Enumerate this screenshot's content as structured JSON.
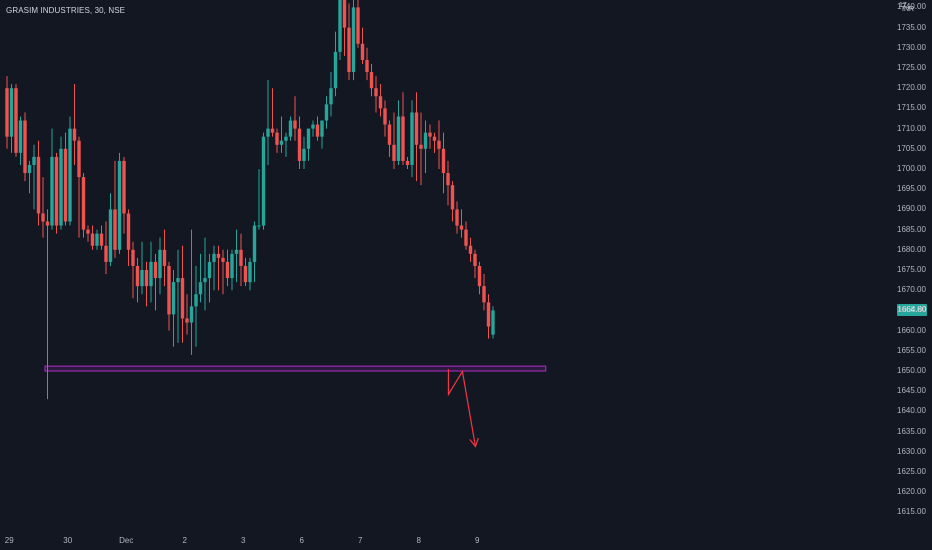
{
  "header": {
    "symbol_line": "GRASIM INDUSTRIES, 30, NSE",
    "currency": "INR",
    "currency_top": "17"
  },
  "last_price_label": "1664.80",
  "colors": {
    "background": "#131722",
    "up": "#26a69a",
    "down": "#ef5350",
    "support_zone": "#9c27b0",
    "arrow": "#f23645",
    "axis_text": "#b2b5be"
  },
  "chart_data": {
    "type": "candlestick",
    "title": "GRASIM INDUSTRIES, 30, NSE",
    "xlabel": "",
    "ylabel": "",
    "ylim": [
      1612,
      1743
    ],
    "grid": false,
    "y_ticks": [
      "1615.00",
      "1620.00",
      "1625.00",
      "1630.00",
      "1635.00",
      "1640.00",
      "1645.00",
      "1650.00",
      "1655.00",
      "1660.00",
      "1665.00",
      "1670.00",
      "1675.00",
      "1680.00",
      "1685.00",
      "1690.00",
      "1695.00",
      "1700.00",
      "1705.00",
      "1710.00",
      "1715.00",
      "1720.00",
      "1725.00",
      "1730.00",
      "1735.00",
      "1740.00"
    ],
    "x_ticks": [
      "29",
      "30",
      "Dec",
      "2",
      "3",
      "6",
      "7",
      "8",
      "9"
    ],
    "x_tick_positions": [
      0.5,
      13.5,
      26.5,
      39.5,
      52.5,
      65.5,
      78.5,
      91.5,
      104.5
    ],
    "candles": [
      [
        1720,
        1723,
        1705,
        1708
      ],
      [
        1708,
        1721,
        1704,
        1720
      ],
      [
        1720,
        1721,
        1703,
        1704
      ],
      [
        1704,
        1713,
        1701,
        1712
      ],
      [
        1712,
        1714,
        1697,
        1699
      ],
      [
        1699,
        1702,
        1694,
        1701
      ],
      [
        1701,
        1706,
        1690,
        1703
      ],
      [
        1703,
        1707,
        1686,
        1689
      ],
      [
        1689,
        1698,
        1683,
        1687
      ],
      [
        1687,
        1690,
        1643,
        1686
      ],
      [
        1686,
        1710,
        1685,
        1703
      ],
      [
        1703,
        1704,
        1684,
        1686
      ],
      [
        1686,
        1708,
        1685,
        1705
      ],
      [
        1705,
        1709,
        1686,
        1687
      ],
      [
        1687,
        1713,
        1686,
        1710
      ],
      [
        1710,
        1721,
        1701,
        1707
      ],
      [
        1707,
        1708,
        1683,
        1698
      ],
      [
        1698,
        1699,
        1683,
        1685
      ],
      [
        1685,
        1686,
        1682,
        1684
      ],
      [
        1684,
        1686,
        1680,
        1681
      ],
      [
        1681,
        1685,
        1680,
        1684
      ],
      [
        1684,
        1686,
        1680,
        1681
      ],
      [
        1681,
        1687,
        1674,
        1677
      ],
      [
        1677,
        1694,
        1676,
        1690
      ],
      [
        1690,
        1702,
        1678,
        1680
      ],
      [
        1680,
        1704,
        1679,
        1702
      ],
      [
        1702,
        1703,
        1684,
        1689
      ],
      [
        1689,
        1690,
        1676,
        1680
      ],
      [
        1680,
        1682,
        1668,
        1676
      ],
      [
        1676,
        1678,
        1667,
        1671
      ],
      [
        1671,
        1682,
        1669,
        1675
      ],
      [
        1675,
        1677,
        1666,
        1671
      ],
      [
        1671,
        1682,
        1667,
        1677
      ],
      [
        1677,
        1679,
        1665,
        1673
      ],
      [
        1673,
        1683,
        1669,
        1680
      ],
      [
        1680,
        1685,
        1671,
        1676
      ],
      [
        1676,
        1677,
        1660,
        1664
      ],
      [
        1664,
        1675,
        1656,
        1672
      ],
      [
        1672,
        1680,
        1657,
        1673
      ],
      [
        1673,
        1681,
        1657,
        1663
      ],
      [
        1663,
        1669,
        1659,
        1662
      ],
      [
        1662,
        1685,
        1654,
        1666
      ],
      [
        1666,
        1676,
        1656,
        1669
      ],
      [
        1669,
        1679,
        1667,
        1672
      ],
      [
        1672,
        1683,
        1665,
        1673
      ],
      [
        1673,
        1679,
        1667,
        1677
      ],
      [
        1677,
        1681,
        1670,
        1679
      ],
      [
        1679,
        1681,
        1670,
        1678
      ],
      [
        1678,
        1680,
        1669,
        1677
      ],
      [
        1677,
        1680,
        1671,
        1673
      ],
      [
        1673,
        1680,
        1670,
        1679
      ],
      [
        1679,
        1685,
        1672,
        1680
      ],
      [
        1680,
        1684,
        1671,
        1676
      ],
      [
        1676,
        1678,
        1671,
        1672
      ],
      [
        1672,
        1678,
        1670,
        1677
      ],
      [
        1677,
        1687,
        1672,
        1686
      ],
      [
        1686,
        1700,
        1685,
        1686
      ],
      [
        1686,
        1709,
        1685,
        1708
      ],
      [
        1708,
        1722,
        1701,
        1710
      ],
      [
        1710,
        1720,
        1708,
        1709
      ],
      [
        1709,
        1710,
        1704,
        1706
      ],
      [
        1706,
        1713,
        1704,
        1707
      ],
      [
        1707,
        1709,
        1703,
        1708
      ],
      [
        1708,
        1713,
        1707,
        1712
      ],
      [
        1712,
        1718,
        1707,
        1710
      ],
      [
        1710,
        1713,
        1700,
        1702
      ],
      [
        1702,
        1708,
        1700,
        1705
      ],
      [
        1705,
        1710,
        1702,
        1710
      ],
      [
        1710,
        1712,
        1708,
        1711
      ],
      [
        1711,
        1713,
        1707,
        1708
      ],
      [
        1708,
        1712,
        1705,
        1712
      ],
      [
        1712,
        1718,
        1710,
        1716
      ],
      [
        1716,
        1724,
        1713,
        1720
      ],
      [
        1720,
        1734,
        1718,
        1729
      ],
      [
        1729,
        1745,
        1727,
        1742
      ],
      [
        1742,
        1743,
        1728,
        1735
      ],
      [
        1735,
        1741,
        1722,
        1724
      ],
      [
        1724,
        1742,
        1722,
        1740
      ],
      [
        1740,
        1745,
        1730,
        1731
      ],
      [
        1731,
        1735,
        1726,
        1727
      ],
      [
        1727,
        1730,
        1722,
        1724
      ],
      [
        1724,
        1726,
        1718,
        1720
      ],
      [
        1720,
        1723,
        1714,
        1718
      ],
      [
        1718,
        1721,
        1713,
        1715
      ],
      [
        1715,
        1717,
        1708,
        1711
      ],
      [
        1711,
        1712,
        1703,
        1706
      ],
      [
        1706,
        1714,
        1700,
        1702
      ],
      [
        1702,
        1717,
        1701,
        1713
      ],
      [
        1713,
        1719,
        1701,
        1702
      ],
      [
        1702,
        1703,
        1700,
        1701
      ],
      [
        1701,
        1717,
        1698,
        1714
      ],
      [
        1714,
        1719,
        1697,
        1706
      ],
      [
        1706,
        1714,
        1696,
        1705
      ],
      [
        1705,
        1712,
        1699,
        1709
      ],
      [
        1709,
        1711,
        1705,
        1708
      ],
      [
        1708,
        1709,
        1704,
        1707
      ],
      [
        1707,
        1712,
        1700,
        1705
      ],
      [
        1705,
        1709,
        1694,
        1699
      ],
      [
        1699,
        1702,
        1691,
        1696
      ],
      [
        1696,
        1697,
        1687,
        1690
      ],
      [
        1690,
        1692,
        1684,
        1686
      ],
      [
        1686,
        1690,
        1683,
        1685
      ],
      [
        1685,
        1687,
        1680,
        1681
      ],
      [
        1681,
        1683,
        1677,
        1679
      ],
      [
        1679,
        1680,
        1673,
        1676
      ],
      [
        1676,
        1677,
        1669,
        1671
      ],
      [
        1671,
        1674,
        1665,
        1667
      ],
      [
        1667,
        1669,
        1658,
        1661
      ],
      [
        1659,
        1666,
        1658,
        1665
      ]
    ],
    "support_zone": {
      "low": 1650.0,
      "high": 1651.2,
      "x_start": 0.0,
      "x_end": 118.6
    },
    "projection_path": [
      {
        "x": 98.1,
        "y": 1650.5
      },
      {
        "x": 98.1,
        "y": 1644.2
      },
      {
        "x": 101.2,
        "y": 1649.9
      },
      {
        "x": 104.1,
        "y": 1631.3
      }
    ]
  }
}
